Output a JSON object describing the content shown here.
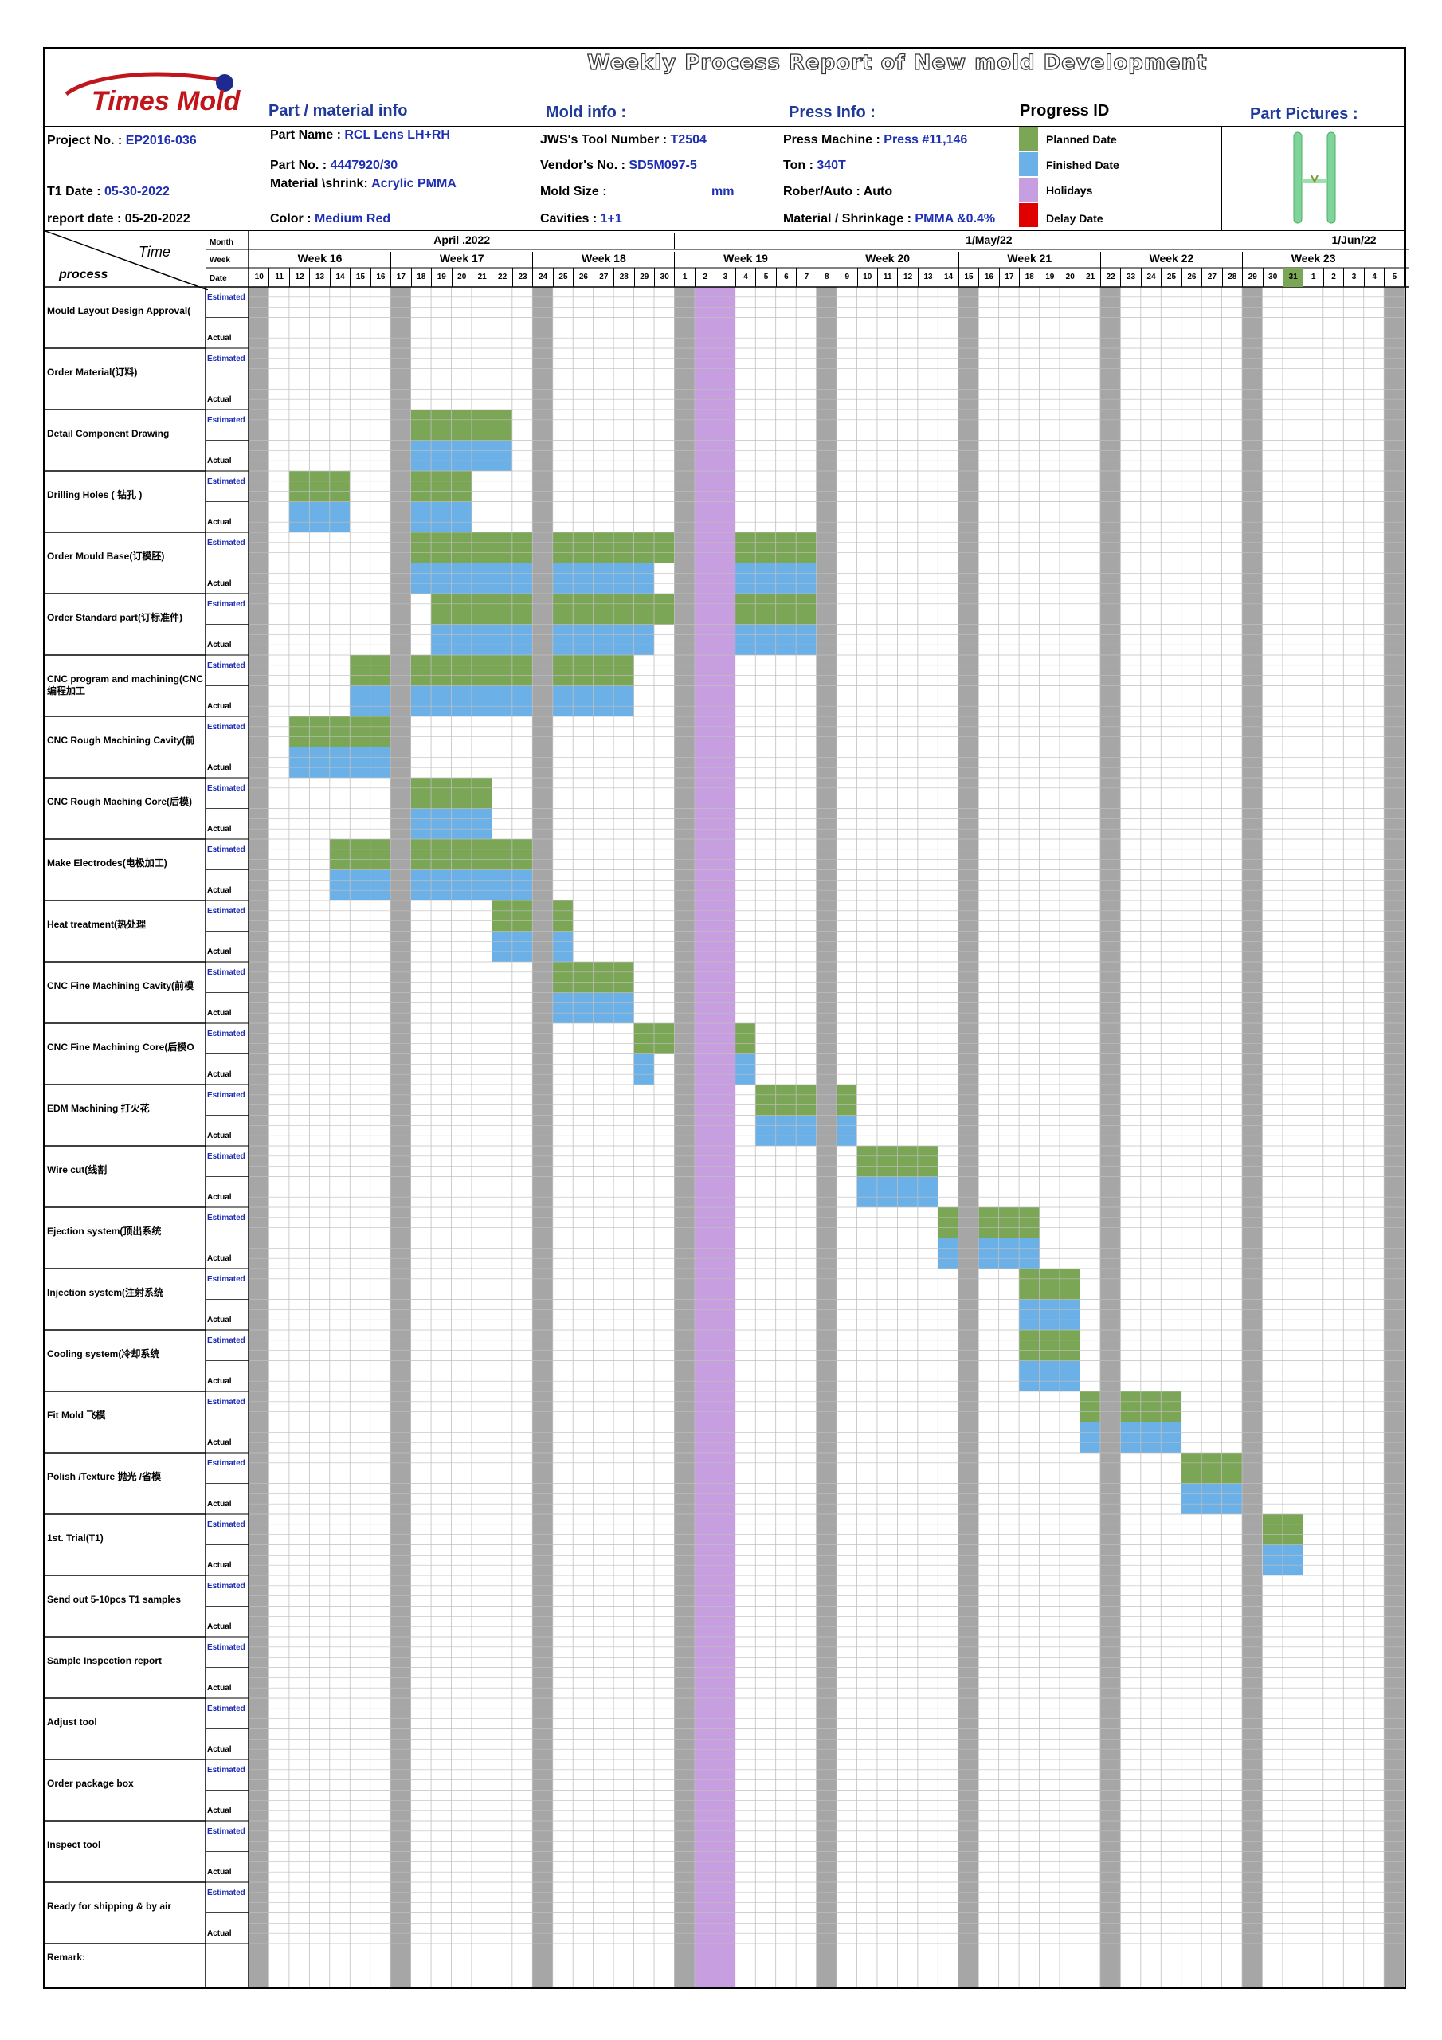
{
  "report_title": "Weekly Process Report of New mold Development",
  "logo_text": "Times Mold",
  "sections": {
    "part": "Part / material info",
    "mold": "Mold info :",
    "press": "Press Info :",
    "progress": "Progress ID",
    "pictures": "Part Pictures :"
  },
  "project": {
    "project_no_label": "Project No. :",
    "project_no": "EP2016-036",
    "t1_date_label": "T1 Date :",
    "t1_date": "05-30-2022",
    "report_date_label": "report date : 05-20-2022"
  },
  "part_info": {
    "name_label": "Part  Name :",
    "name": "RCL Lens LH+RH",
    "no_label": "Part No. :",
    "no": "4447920/30",
    "material_label": "Material \\shrink:",
    "material": "Acrylic PMMA",
    "color_label": "Color :",
    "color": "Medium Red"
  },
  "mold_info": {
    "tool_label": "JWS's Tool Number :",
    "tool": "T2504",
    "vendor_label": "Vendor's No. :",
    "vendor": "SD5M097-5",
    "size_label": "Mold Size :",
    "size_unit": "mm",
    "cavities_label": "Cavities :",
    "cavities": "1+1"
  },
  "press_info": {
    "machine_label": "Press Machine :",
    "machine": "Press #11,146",
    "ton_label": "Ton :",
    "ton": "340T",
    "robot_label": "Rober/Auto : Auto",
    "shrink_label": "Material / Shrinkage :",
    "shrink": "PMMA &0.4%"
  },
  "legend": [
    {
      "label": "Planned Date",
      "color": "#7ba656"
    },
    {
      "label": "Finished  Date",
      "color": "#6bb1e8"
    },
    {
      "label": "Holidays",
      "color": "#c79ee0"
    },
    {
      "label": "Delay Date",
      "color": "#e00000"
    }
  ],
  "header": {
    "time": "Time",
    "process": "process",
    "month_label": "Month",
    "week_label": "Week",
    "date_label": "Date",
    "months": [
      {
        "label": "April .2022",
        "start": 0,
        "end": 21
      },
      {
        "label": "1/May/22",
        "start": 21,
        "end": 52
      },
      {
        "label": "1/Jun/22",
        "start": 52,
        "end": 57
      }
    ],
    "weeks": [
      {
        "label": "Week 16",
        "start": 0,
        "end": 7
      },
      {
        "label": "Week 17",
        "start": 7,
        "end": 14
      },
      {
        "label": "Week 18",
        "start": 14,
        "end": 21
      },
      {
        "label": "Week 19",
        "start": 21,
        "end": 28
      },
      {
        "label": "Week 20",
        "start": 28,
        "end": 35
      },
      {
        "label": "Week 21",
        "start": 35,
        "end": 42
      },
      {
        "label": "Week 22",
        "start": 42,
        "end": 49
      },
      {
        "label": "Week 23",
        "start": 49,
        "end": 56
      }
    ],
    "dates": [
      "10",
      "11",
      "12",
      "13",
      "14",
      "15",
      "16",
      "17",
      "18",
      "19",
      "20",
      "21",
      "22",
      "23",
      "24",
      "25",
      "26",
      "27",
      "28",
      "29",
      "30",
      "1",
      "2",
      "3",
      "4",
      "5",
      "6",
      "7",
      "8",
      "9",
      "10",
      "11",
      "12",
      "13",
      "14",
      "15",
      "16",
      "17",
      "18",
      "19",
      "20",
      "21",
      "22",
      "23",
      "24",
      "25",
      "26",
      "27",
      "28",
      "29",
      "30",
      "31",
      "1",
      "2",
      "3",
      "4",
      "5"
    ],
    "highlight_date_index": 51,
    "sunday_indices": [
      0,
      7,
      14,
      21,
      28,
      35,
      42,
      49,
      56
    ],
    "holiday_range": [
      22,
      24
    ]
  },
  "row_labels": {
    "estimated": "Estimated",
    "actual": "Actual"
  },
  "remark_label": "Remark:",
  "processes": [
    {
      "name": "Mould Layout Design Approval(",
      "est": [],
      "act": []
    },
    {
      "name": "Order Material(订料)",
      "est": [],
      "act": []
    },
    {
      "name": "Detail Component Drawing",
      "est": [
        [
          8,
          13
        ]
      ],
      "act": [
        [
          8,
          13
        ]
      ]
    },
    {
      "name": "Drilling Holes ( 钻孔 )",
      "est": [
        [
          2,
          5
        ],
        [
          8,
          11
        ]
      ],
      "act": [
        [
          2,
          5
        ],
        [
          8,
          11
        ]
      ]
    },
    {
      "name": "Order Mould Base(订模胚)",
      "est": [
        [
          8,
          14
        ],
        [
          15,
          21
        ],
        [
          24,
          28
        ]
      ],
      "act": [
        [
          8,
          14
        ],
        [
          15,
          20
        ],
        [
          24,
          28
        ]
      ]
    },
    {
      "name": "Order Standard part(订标准件)",
      "est": [
        [
          9,
          14
        ],
        [
          15,
          21
        ],
        [
          24,
          28
        ]
      ],
      "act": [
        [
          9,
          14
        ],
        [
          15,
          20
        ],
        [
          24,
          28
        ]
      ]
    },
    {
      "name": "CNC program and machining(CNC 编程加工",
      "est": [
        [
          5,
          7
        ],
        [
          8,
          14
        ],
        [
          15,
          19
        ]
      ],
      "act": [
        [
          5,
          7
        ],
        [
          8,
          14
        ],
        [
          15,
          19
        ]
      ]
    },
    {
      "name": "CNC Rough Machining Cavity(前",
      "est": [
        [
          2,
          7
        ]
      ],
      "act": [
        [
          2,
          7
        ]
      ]
    },
    {
      "name": "CNC Rough Maching Core(后模)",
      "est": [
        [
          8,
          12
        ]
      ],
      "act": [
        [
          8,
          12
        ]
      ]
    },
    {
      "name": "Make Electrodes(电极加工)",
      "est": [
        [
          4,
          7
        ],
        [
          8,
          14
        ]
      ],
      "act": [
        [
          4,
          7
        ],
        [
          8,
          14
        ]
      ]
    },
    {
      "name": "Heat treatment(热处理",
      "est": [
        [
          12,
          14
        ],
        [
          15,
          16
        ]
      ],
      "act": [
        [
          12,
          14
        ],
        [
          15,
          16
        ]
      ]
    },
    {
      "name": "CNC Fine  Machining Cavity(前模",
      "est": [
        [
          15,
          19
        ]
      ],
      "act": [
        [
          15,
          19
        ]
      ]
    },
    {
      "name": "CNC Fine Machining Core(后模O",
      "est": [
        [
          19,
          21
        ],
        [
          24,
          25
        ]
      ],
      "act": [
        [
          19,
          20
        ],
        [
          24,
          25
        ]
      ]
    },
    {
      "name": "EDM Machining 打火花",
      "est": [
        [
          25,
          28
        ],
        [
          29,
          30
        ]
      ],
      "act": [
        [
          25,
          28
        ],
        [
          29,
          30
        ]
      ]
    },
    {
      "name": "Wire cut(线割",
      "est": [
        [
          30,
          34
        ]
      ],
      "act": [
        [
          30,
          34
        ]
      ]
    },
    {
      "name": "Ejection system(顶出系统",
      "est": [
        [
          34,
          35
        ],
        [
          36,
          39
        ]
      ],
      "act": [
        [
          34,
          35
        ],
        [
          36,
          39
        ]
      ]
    },
    {
      "name": "Injection system(注射系统",
      "est": [
        [
          38,
          41
        ]
      ],
      "act": [
        [
          38,
          41
        ]
      ]
    },
    {
      "name": "Cooling system(冷却系统",
      "est": [
        [
          38,
          41
        ]
      ],
      "act": [
        [
          38,
          41
        ]
      ]
    },
    {
      "name": " Fit  Mold 飞模",
      "est": [
        [
          41,
          42
        ],
        [
          43,
          46
        ]
      ],
      "act": [
        [
          41,
          42
        ],
        [
          43,
          46
        ]
      ]
    },
    {
      "name": "Polish /Texture 抛光 /省模",
      "est": [
        [
          46,
          49
        ]
      ],
      "act": [
        [
          46,
          49
        ]
      ]
    },
    {
      "name": "1st. Trial(T1)",
      "est": [
        [
          50,
          52
        ]
      ],
      "act": [
        [
          50,
          52
        ]
      ]
    },
    {
      "name": "Send out 5-10pcs T1 samples",
      "est": [],
      "act": []
    },
    {
      "name": "Sample Inspection report",
      "est": [],
      "act": []
    },
    {
      "name": "Adjust tool",
      "est": [],
      "act": []
    },
    {
      "name": "Order package box",
      "est": [],
      "act": []
    },
    {
      "name": "Inspect tool",
      "est": [],
      "act": []
    },
    {
      "name": "Ready for shipping & by air",
      "est": [],
      "act": []
    }
  ],
  "colors": {
    "planned": "#7ba656",
    "finished": "#6bb1e8",
    "holiday": "#c79ee0",
    "sunday": "#a6a6a6",
    "grid": "#bfbfbf",
    "text_blue": "#1f2fb3"
  }
}
